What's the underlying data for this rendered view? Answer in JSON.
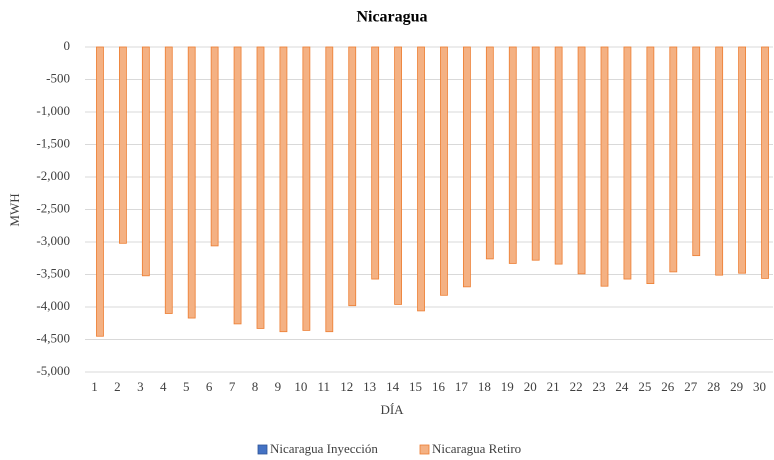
{
  "chart_data": {
    "type": "bar",
    "title": "Nicaragua",
    "x_label": "DÍA",
    "y_label": "MWH",
    "categories": [
      "1",
      "2",
      "3",
      "4",
      "5",
      "6",
      "7",
      "8",
      "9",
      "10",
      "11",
      "12",
      "13",
      "14",
      "15",
      "16",
      "17",
      "18",
      "19",
      "20",
      "21",
      "22",
      "23",
      "24",
      "25",
      "26",
      "27",
      "28",
      "29",
      "30"
    ],
    "series": [
      {
        "name": "Nicaragua Inyección",
        "color": "#4472c4",
        "values": [
          0,
          0,
          0,
          0,
          0,
          0,
          0,
          0,
          0,
          0,
          0,
          0,
          0,
          0,
          0,
          0,
          0,
          0,
          0,
          0,
          0,
          0,
          0,
          0,
          0,
          0,
          0,
          0,
          0,
          0
        ]
      },
      {
        "name": "Nicaragua Retiro",
        "color": "#f4b183",
        "values": [
          -4450,
          -3020,
          -3520,
          -4100,
          -4170,
          -3060,
          -4260,
          -4330,
          -4380,
          -4360,
          -4380,
          -3980,
          -3570,
          -3960,
          -4060,
          -3820,
          -3690,
          -3260,
          -3330,
          -3280,
          -3340,
          -3490,
          -3680,
          -3570,
          -3640,
          -3460,
          -3210,
          -3510,
          -3480,
          -3560
        ]
      }
    ],
    "ylim": [
      -5000,
      0
    ],
    "yticks": [
      0,
      -500,
      {
        "value": -1000,
        "label": "-1,000"
      },
      {
        "value": -1500,
        "label": "-1,500"
      },
      {
        "value": -2000,
        "label": "-2,000"
      },
      {
        "value": -2500,
        "label": "-2,500"
      },
      {
        "value": -3000,
        "label": "-3,000"
      },
      {
        "value": -3500,
        "label": "-3,500"
      },
      {
        "value": -4000,
        "label": "-4,000"
      },
      {
        "value": -4500,
        "label": "-4,500"
      },
      {
        "value": -5000,
        "label": "-5,000"
      }
    ],
    "grid": true,
    "legend": "bottom"
  }
}
